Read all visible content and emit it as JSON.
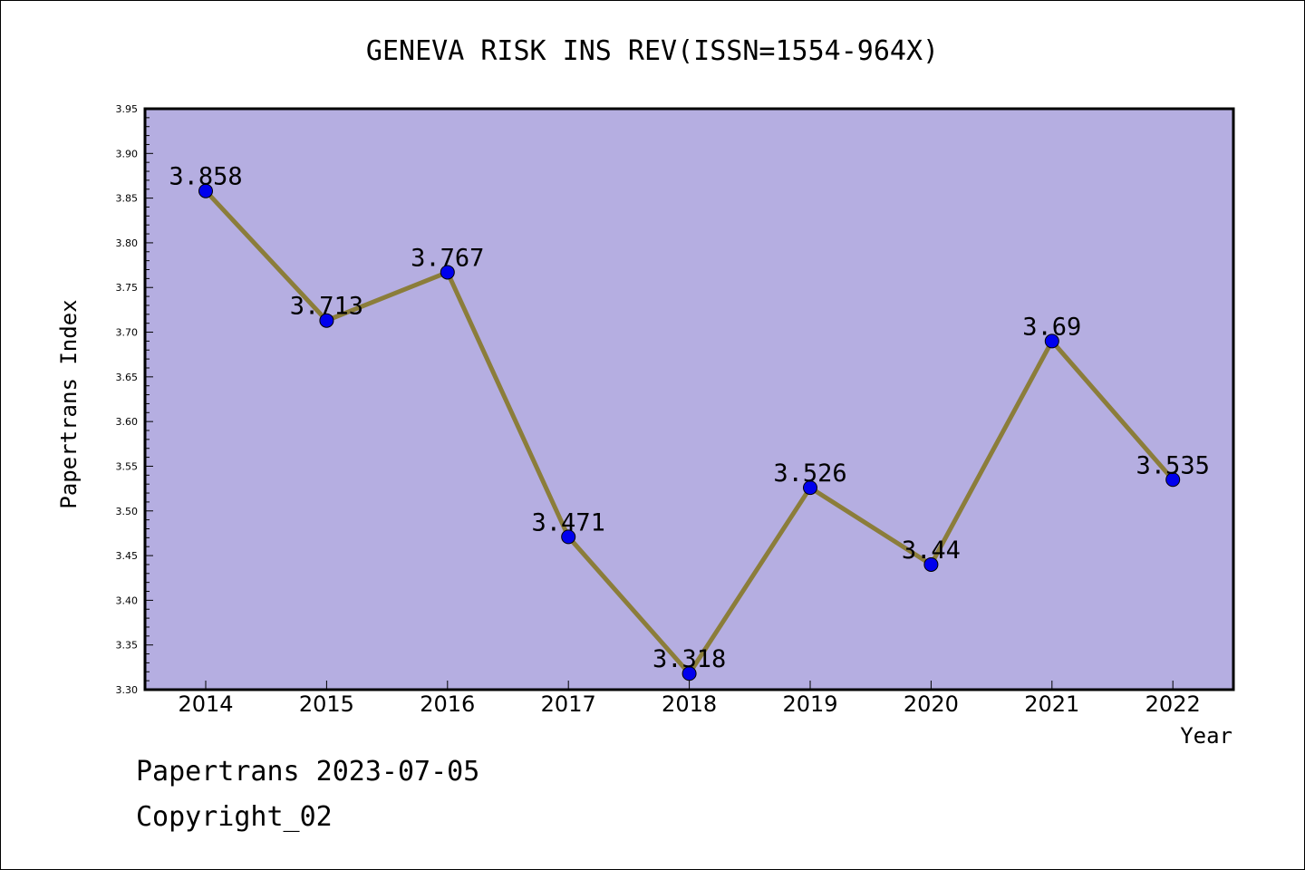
{
  "chart_data": {
    "type": "line",
    "title": "GENEVA RISK INS REV(ISSN=1554-964X)",
    "xlabel": "Year",
    "ylabel": "Papertrans Index",
    "categories": [
      "2014",
      "2015",
      "2016",
      "2017",
      "2018",
      "2019",
      "2020",
      "2021",
      "2022"
    ],
    "values": [
      3.858,
      3.713,
      3.767,
      3.471,
      3.318,
      3.526,
      3.44,
      3.69,
      3.535
    ],
    "data_labels": [
      "3.858",
      "3.713",
      "3.767",
      "3.471",
      "3.318",
      "3.526",
      "3.44",
      "3.69",
      "3.535"
    ],
    "ylim": [
      3.3,
      3.95
    ],
    "yticks": [
      "3.30",
      "3.35",
      "3.40",
      "3.45",
      "3.50",
      "3.55",
      "3.60",
      "3.65",
      "3.70",
      "3.75",
      "3.80",
      "3.85",
      "3.90",
      "3.95"
    ],
    "grid": false,
    "colors": {
      "plot_background": "#b5aee1",
      "line": "#8b7d3a",
      "marker": "#0000ee",
      "axis": "#000000"
    }
  },
  "footer": {
    "line1": "Papertrans 2023-07-05",
    "line2": "Copyright_02"
  }
}
